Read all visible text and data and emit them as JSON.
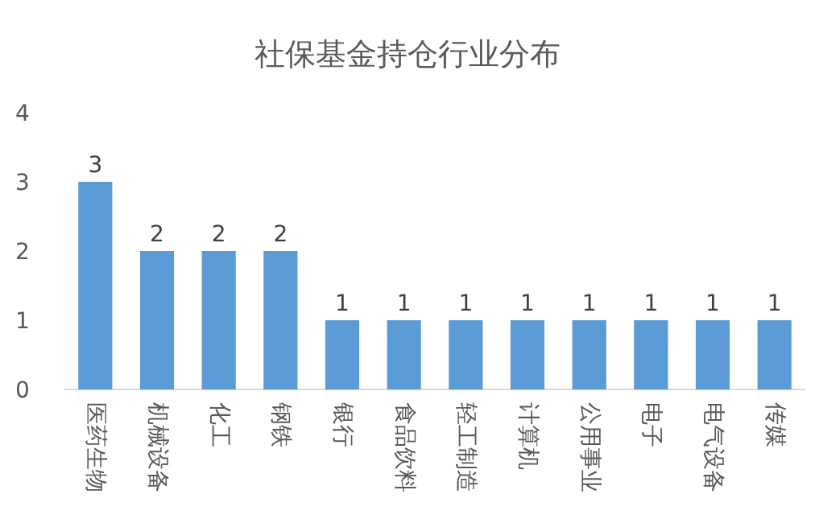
{
  "chart_data": {
    "type": "bar",
    "title": "社保基金持仓行业分布",
    "categories": [
      "医药生物",
      "机械设备",
      "化工",
      "钢铁",
      "银行",
      "食品饮料",
      "轻工制造",
      "计算机",
      "公用事业",
      "电子",
      "电气设备",
      "传媒"
    ],
    "values": [
      3,
      2,
      2,
      2,
      1,
      1,
      1,
      1,
      1,
      1,
      1,
      1
    ],
    "color": "#5b9bd5",
    "ylim": [
      0,
      4
    ],
    "yticks": [
      0,
      1,
      2,
      3,
      4
    ],
    "data_labels": true
  }
}
